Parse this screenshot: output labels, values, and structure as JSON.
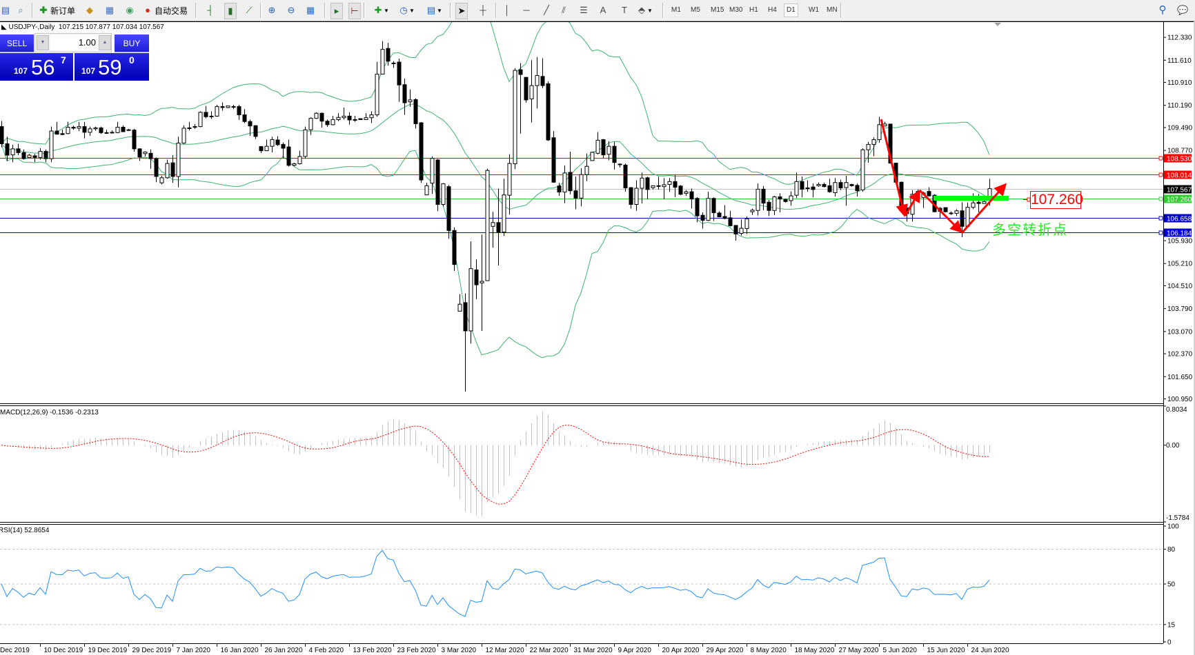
{
  "toolbar": {
    "new_order_label": "新订单",
    "auto_trading_label": "自动交易",
    "icons": [
      "chart-window-icon",
      "zoom-chart-icon",
      "new-order-icon",
      "market-watch-icon",
      "navigator-icon",
      "signals-icon",
      "auto-trading-icon",
      "bar-chart-icon",
      "candlestick-icon",
      "line-chart-icon",
      "zoom-in-icon",
      "zoom-out-icon",
      "tile-windows-icon",
      "auto-scroll-icon",
      "chart-shift-icon",
      "indicators-icon",
      "periods-icon",
      "templates-icon",
      "cursor-icon",
      "crosshair-icon",
      "vertical-line-icon",
      "horizontal-line-icon",
      "trendline-icon",
      "equidistant-channel-icon",
      "fibonacci-icon",
      "text-icon",
      "text-label-icon",
      "arrows-icon",
      "search-icon",
      "chat-icon"
    ],
    "timeframes": [
      "M1",
      "M5",
      "M15",
      "M30",
      "H1",
      "H4",
      "D1",
      "W1",
      "MN"
    ],
    "active_timeframe": "D1"
  },
  "header": {
    "symbol": "USDJPY-,Daily",
    "open": "107.215",
    "high": "107.877",
    "low": "107.034",
    "close": "107.567"
  },
  "one_click": {
    "sell_label": "SELL",
    "buy_label": "BUY",
    "lot": "1.00",
    "sell_price": {
      "big_figure": "107",
      "pips": "56",
      "fraction": "7"
    },
    "buy_price": {
      "big_figure": "107",
      "pips": "59",
      "fraction": "0"
    }
  },
  "annotations": {
    "price_label": "107.260",
    "text": "多空转折点",
    "colors": {
      "arrows": "#ff0000",
      "support_bar": "#00ff00",
      "text": "#22ee22"
    }
  },
  "chart_data": {
    "type": "candlestick",
    "symbol": "USDJPY-",
    "timeframe": "Daily",
    "ylim": [
      100.81,
      112.81
    ],
    "price_ticks": [
      "112.330",
      "111.610",
      "110.910",
      "110.190",
      "109.490",
      "108.770",
      "105.930",
      "105.210",
      "104.510",
      "103.790",
      "103.070",
      "102.370",
      "101.650",
      "100.950"
    ],
    "horizontal_lines": [
      {
        "value": "108.530",
        "color": "#ff0000"
      },
      {
        "value": "108.014",
        "color": "#ff0000"
      },
      {
        "value": "107.567",
        "color": "#c0c0c0",
        "label_color": "#000000"
      },
      {
        "value": "107.260",
        "color": "#32cd32"
      },
      {
        "value": "106.658",
        "color": "#0000cc"
      },
      {
        "value": "106.184",
        "color": "#0000cc"
      }
    ],
    "date_labels": [
      {
        "bar": -1,
        "label": "Dec 2019"
      },
      {
        "bar": 7,
        "label": "10 Dec 2019"
      },
      {
        "bar": 15,
        "label": "19 Dec 2019"
      },
      {
        "bar": 23,
        "label": "29 Dec 2019"
      },
      {
        "bar": 31,
        "label": "7 Jan 2020"
      },
      {
        "bar": 39,
        "label": "16 Jan 2020"
      },
      {
        "bar": 47,
        "label": "26 Jan 2020"
      },
      {
        "bar": 55,
        "label": "4 Feb 2020"
      },
      {
        "bar": 63,
        "label": "13 Feb 2020"
      },
      {
        "bar": 71,
        "label": "23 Feb 2020"
      },
      {
        "bar": 79,
        "label": "3 Mar 2020"
      },
      {
        "bar": 87,
        "label": "12 Mar 2020"
      },
      {
        "bar": 95,
        "label": "22 Mar 2020"
      },
      {
        "bar": 103,
        "label": "31 Mar 2020"
      },
      {
        "bar": 111,
        "label": "9 Apr 2020"
      },
      {
        "bar": 119,
        "label": "20 Apr 2020"
      },
      {
        "bar": 127,
        "label": "29 Apr 2020"
      },
      {
        "bar": 135,
        "label": "8 May 2020"
      },
      {
        "bar": 143,
        "label": "18 May 2020"
      },
      {
        "bar": 151,
        "label": "27 May 2020"
      },
      {
        "bar": 159,
        "label": "5 Jun 2020"
      },
      {
        "bar": 167,
        "label": "15 Jun 2020"
      },
      {
        "bar": 175,
        "label": "24 Jun 2020"
      }
    ],
    "bollinger": {
      "period": 20,
      "deviation": 2,
      "color": "#3cb371"
    },
    "ohlc": [
      [
        109.52,
        109.7,
        108.87,
        108.98
      ],
      [
        108.98,
        109.2,
        108.44,
        108.62
      ],
      [
        108.63,
        108.95,
        108.4,
        108.82
      ],
      [
        108.82,
        108.98,
        108.62,
        108.7
      ],
      [
        108.7,
        108.8,
        108.48,
        108.51
      ],
      [
        108.55,
        108.66,
        108.55,
        108.62
      ],
      [
        108.6,
        108.66,
        108.4,
        108.55
      ],
      [
        108.55,
        108.84,
        108.48,
        108.74
      ],
      [
        108.74,
        108.8,
        108.4,
        108.51
      ],
      [
        108.51,
        109.52,
        108.4,
        109.38
      ],
      [
        109.38,
        109.67,
        109.27,
        109.28
      ],
      [
        109.3,
        109.42,
        109.25,
        109.27
      ],
      [
        109.3,
        109.67,
        109.28,
        109.5
      ],
      [
        109.5,
        109.55,
        109.42,
        109.47
      ],
      [
        109.47,
        109.67,
        109.38,
        109.52
      ],
      [
        109.52,
        109.67,
        109.15,
        109.34
      ],
      [
        109.34,
        109.52,
        109.23,
        109.45
      ],
      [
        109.45,
        109.52,
        109.39,
        109.48
      ],
      [
        109.48,
        109.52,
        109.29,
        109.33
      ],
      [
        109.33,
        109.42,
        109.29,
        109.32
      ],
      [
        109.32,
        109.4,
        109.3,
        109.34
      ],
      [
        109.33,
        109.67,
        109.31,
        109.5
      ],
      [
        109.5,
        109.56,
        109.35,
        109.36
      ],
      [
        109.42,
        109.45,
        109.4,
        109.41
      ],
      [
        109.41,
        109.45,
        108.73,
        108.82
      ],
      [
        108.82,
        108.84,
        108.44,
        108.56
      ],
      [
        108.67,
        108.74,
        108.58,
        108.72
      ],
      [
        108.68,
        108.8,
        108.19,
        108.51
      ],
      [
        108.51,
        108.55,
        107.77,
        107.95
      ],
      [
        107.75,
        107.97,
        107.7,
        107.91
      ],
      [
        107.91,
        108.48,
        107.88,
        108.36
      ],
      [
        108.38,
        108.62,
        107.75,
        107.95
      ],
      [
        107.95,
        109.2,
        107.61,
        109.0
      ],
      [
        109.0,
        109.56,
        108.98,
        109.47
      ],
      [
        109.47,
        109.67,
        109.4,
        109.48
      ],
      [
        109.5,
        109.6,
        109.45,
        109.52
      ],
      [
        109.52,
        110.0,
        109.5,
        109.97
      ],
      [
        109.97,
        110.17,
        109.78,
        109.83
      ],
      [
        109.85,
        110.0,
        109.76,
        109.85
      ],
      [
        109.85,
        110.21,
        109.83,
        110.15
      ],
      [
        110.15,
        110.28,
        110.02,
        110.12
      ],
      [
        110.12,
        110.17,
        110.1,
        110.17
      ],
      [
        110.15,
        110.21,
        110.07,
        110.14
      ],
      [
        110.15,
        110.21,
        109.73,
        109.89
      ],
      [
        109.89,
        110.07,
        109.63,
        109.68
      ],
      [
        109.68,
        109.74,
        109.23,
        109.54
      ],
      [
        109.55,
        109.56,
        109.13,
        109.21
      ],
      [
        108.89,
        108.91,
        108.69,
        108.76
      ],
      [
        108.76,
        109.11,
        108.76,
        108.9
      ],
      [
        108.9,
        109.2,
        108.71,
        109.11
      ],
      [
        109.1,
        109.22,
        108.91,
        108.95
      ],
      [
        108.96,
        109.02,
        108.53,
        108.84
      ],
      [
        108.88,
        109.11,
        108.26,
        108.3
      ],
      [
        108.3,
        108.38,
        108.27,
        108.35
      ],
      [
        108.35,
        108.76,
        108.33,
        108.58
      ],
      [
        108.58,
        109.52,
        108.51,
        109.42
      ],
      [
        109.42,
        109.81,
        109.26,
        109.78
      ],
      [
        109.78,
        109.97,
        109.76,
        109.94
      ],
      [
        109.94,
        109.96,
        109.49,
        109.69
      ],
      [
        109.69,
        109.74,
        109.51,
        109.58
      ],
      [
        109.58,
        109.86,
        109.56,
        109.74
      ],
      [
        109.74,
        109.94,
        109.69,
        109.81
      ],
      [
        109.8,
        110.12,
        109.74,
        109.85
      ],
      [
        109.85,
        109.97,
        109.58,
        109.73
      ],
      [
        109.74,
        109.86,
        109.67,
        109.74
      ],
      [
        109.77,
        109.78,
        109.73,
        109.74
      ],
      [
        109.74,
        109.94,
        109.73,
        109.8
      ],
      [
        109.8,
        110.0,
        109.63,
        109.89
      ],
      [
        109.89,
        111.56,
        109.83,
        111.17
      ],
      [
        111.17,
        112.21,
        111.17,
        111.95
      ],
      [
        111.98,
        112.16,
        111.44,
        111.58
      ],
      [
        111.5,
        111.58,
        111.37,
        111.52
      ],
      [
        111.55,
        111.66,
        110.3,
        110.83
      ],
      [
        110.84,
        111.03,
        109.89,
        110.27
      ],
      [
        110.3,
        110.69,
        110.14,
        110.36
      ],
      [
        110.37,
        110.41,
        109.46,
        109.61
      ],
      [
        109.64,
        109.66,
        107.75,
        107.84
      ],
      [
        107.37,
        107.75,
        107.36,
        107.66
      ],
      [
        107.74,
        108.58,
        107.4,
        108.52
      ],
      [
        108.47,
        108.5,
        106.86,
        107.07
      ],
      [
        107.07,
        107.74,
        107.01,
        107.72
      ],
      [
        107.63,
        107.68,
        105.99,
        106.25
      ],
      [
        106.25,
        106.35,
        104.98,
        105.18
      ],
      [
        103.71,
        104.25,
        103.71,
        103.93
      ],
      [
        103.98,
        104.27,
        101.18,
        103.09
      ],
      [
        103.09,
        105.91,
        102.69,
        105.05
      ],
      [
        105.01,
        105.34,
        104.09,
        104.54
      ],
      [
        104.6,
        106.12,
        103.09,
        104.65
      ],
      [
        104.67,
        108.2,
        104.67,
        108.14
      ],
      [
        106.38,
        106.84,
        105.71,
        106.5
      ],
      [
        106.5,
        107.57,
        105.15,
        106.2
      ],
      [
        106.2,
        107.88,
        106.08,
        107.37
      ],
      [
        107.36,
        108.65,
        106.75,
        108.36
      ],
      [
        108.35,
        111.36,
        108.18,
        111.29
      ],
      [
        111.31,
        111.52,
        109.3,
        111.16
      ],
      [
        111.07,
        111.08,
        110.27,
        110.36
      ],
      [
        110.39,
        111.61,
        109.65,
        110.81
      ],
      [
        110.81,
        111.71,
        110.09,
        111.13
      ],
      [
        111.1,
        111.67,
        110.73,
        110.81
      ],
      [
        110.87,
        110.94,
        109.07,
        109.1
      ],
      [
        109.17,
        109.38,
        107.75,
        107.77
      ],
      [
        107.65,
        107.75,
        107.34,
        107.46
      ],
      [
        107.46,
        108.3,
        107.11,
        108.06
      ],
      [
        108.08,
        108.73,
        107.39,
        107.5
      ],
      [
        107.5,
        107.95,
        106.92,
        107.27
      ],
      [
        107.27,
        108.21,
        107.01,
        108.01
      ],
      [
        108.01,
        108.67,
        107.8,
        108.27
      ],
      [
        108.45,
        108.73,
        108.44,
        108.71
      ],
      [
        108.68,
        109.35,
        108.64,
        109.09
      ],
      [
        109.11,
        109.13,
        108.53,
        108.63
      ],
      [
        108.65,
        109.06,
        108.46,
        108.9
      ],
      [
        108.9,
        109.04,
        108.17,
        108.39
      ],
      [
        108.34,
        108.36,
        108.23,
        108.33
      ],
      [
        108.31,
        108.36,
        107.47,
        107.59
      ],
      [
        107.6,
        107.61,
        106.94,
        107.07
      ],
      [
        107.07,
        107.83,
        106.87,
        107.58
      ],
      [
        107.58,
        108.07,
        107.1,
        107.9
      ],
      [
        107.91,
        107.94,
        107.23,
        107.54
      ],
      [
        107.6,
        107.67,
        107.54,
        107.66
      ],
      [
        107.66,
        107.94,
        107.54,
        107.66
      ],
      [
        107.63,
        107.9,
        107.23,
        107.69
      ],
      [
        107.7,
        107.9,
        107.47,
        107.79
      ],
      [
        107.79,
        108.01,
        107.3,
        107.61
      ],
      [
        107.65,
        107.68,
        107.36,
        107.39
      ],
      [
        107.42,
        107.52,
        107.34,
        107.47
      ],
      [
        107.47,
        107.57,
        106.94,
        107.24
      ],
      [
        107.26,
        107.3,
        106.51,
        106.71
      ],
      [
        106.73,
        106.82,
        106.31,
        106.57
      ],
      [
        106.57,
        107.47,
        106.55,
        107.26
      ],
      [
        107.26,
        107.29,
        106.55,
        106.81
      ],
      [
        106.8,
        106.85,
        106.66,
        106.68
      ],
      [
        106.69,
        107.05,
        106.6,
        106.63
      ],
      [
        106.65,
        106.87,
        106.38,
        106.4
      ],
      [
        106.41,
        106.42,
        105.93,
        106.14
      ],
      [
        106.16,
        106.6,
        106.09,
        106.32
      ],
      [
        106.31,
        106.69,
        106.14,
        106.62
      ],
      [
        106.84,
        106.94,
        106.74,
        106.89
      ],
      [
        106.88,
        107.73,
        106.72,
        107.55
      ],
      [
        107.55,
        107.65,
        106.89,
        107.11
      ],
      [
        107.14,
        107.21,
        106.71,
        106.88
      ],
      [
        106.88,
        107.34,
        106.73,
        107.31
      ],
      [
        107.31,
        107.42,
        106.82,
        107.24
      ],
      [
        107.23,
        107.25,
        107.13,
        107.16
      ],
      [
        107.19,
        107.48,
        107.03,
        107.34
      ],
      [
        107.36,
        108.07,
        107.27,
        107.79
      ],
      [
        107.79,
        107.95,
        107.29,
        107.55
      ],
      [
        107.58,
        107.83,
        107.47,
        107.59
      ],
      [
        107.62,
        107.73,
        107.29,
        107.54
      ],
      [
        107.66,
        107.76,
        107.63,
        107.7
      ],
      [
        107.7,
        107.76,
        107.61,
        107.63
      ],
      [
        107.66,
        107.88,
        107.44,
        107.47
      ],
      [
        107.44,
        107.9,
        107.32,
        107.76
      ],
      [
        107.76,
        107.85,
        107.52,
        107.59
      ],
      [
        107.6,
        107.97,
        107.03,
        107.76
      ],
      [
        107.7,
        107.72,
        107.63,
        107.66
      ],
      [
        107.67,
        107.73,
        107.32,
        107.5
      ],
      [
        107.53,
        108.84,
        107.47,
        108.79
      ],
      [
        108.79,
        109.04,
        108.38,
        108.96
      ],
      [
        108.96,
        109.18,
        108.59,
        109.11
      ],
      [
        109.11,
        109.83,
        109.01,
        109.58
      ],
      [
        109.54,
        109.67,
        109.53,
        109.6
      ],
      [
        109.6,
        109.61,
        108.36,
        108.37
      ],
      [
        108.37,
        108.38,
        107.76,
        107.77
      ],
      [
        107.77,
        107.79,
        106.85,
        106.87
      ],
      [
        106.96,
        106.98,
        106.53,
        106.78
      ],
      [
        106.76,
        107.52,
        106.53,
        107.39
      ],
      [
        107.48,
        107.54,
        107.25,
        107.27
      ],
      [
        107.29,
        107.47,
        106.96,
        107.43
      ],
      [
        107.48,
        107.61,
        107.32,
        107.34
      ],
      [
        107.36,
        107.39,
        106.82,
        106.84
      ],
      [
        106.95,
        106.99,
        106.63,
        106.85
      ],
      [
        106.97,
        106.98,
        106.82,
        106.84
      ],
      [
        106.8,
        106.85,
        106.74,
        106.79
      ],
      [
        106.79,
        106.92,
        106.71,
        106.87
      ],
      [
        106.87,
        107.14,
        106.04,
        106.38
      ],
      [
        106.38,
        107.13,
        106.35,
        106.98
      ],
      [
        106.98,
        107.42,
        106.92,
        107.12
      ],
      [
        107.14,
        107.4,
        106.82,
        107.1
      ],
      [
        107.1,
        107.25,
        107.09,
        107.16
      ],
      [
        107.215,
        107.877,
        107.034,
        107.567
      ]
    ],
    "macd": {
      "label": "MACD(12,26,9)",
      "main_value": "-0.1536",
      "signal_value": "-0.2313",
      "ylim": [
        -1.5784,
        0.8034
      ],
      "ticks": [
        "0.8034",
        "0.00",
        "-1.5784"
      ],
      "histogram_color": "#c0c0c0",
      "signal_color": "#ff0000"
    },
    "rsi": {
      "label": "RSI(14)",
      "value": "52.8654",
      "ylim": [
        0,
        100
      ],
      "ticks": [
        "100",
        "80",
        "50",
        "15",
        "0"
      ],
      "levels": [
        80,
        50,
        15
      ],
      "color": "#1e90ff"
    }
  }
}
